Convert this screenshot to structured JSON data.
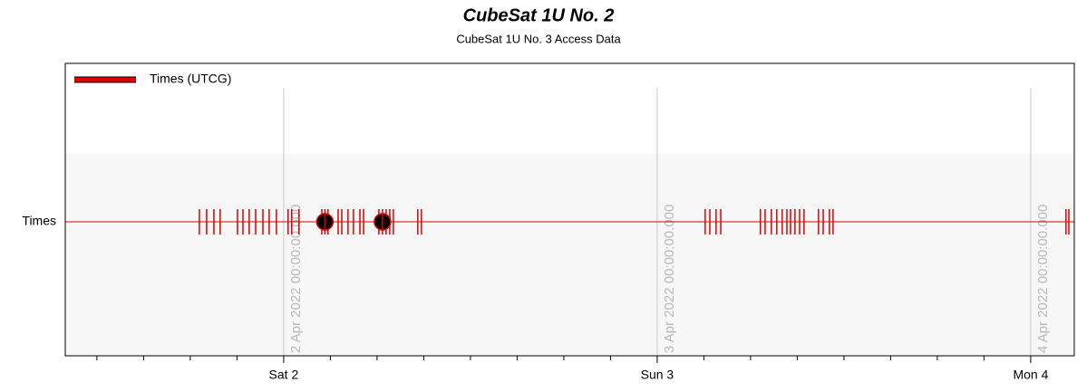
{
  "chart_data": {
    "type": "timeline",
    "title": "CubeSat 1U No. 2",
    "subtitle": "CubeSat 1U No. 3 Access Data",
    "legend": {
      "label": "Times (UTCG)",
      "corner": "top-left"
    },
    "color": "#e00000",
    "row_label": "Times",
    "xlim": [
      "2022-04-01T09:58",
      "2022-04-04T02:48"
    ],
    "xticks": [
      {
        "value": "2022-04-02T00:00",
        "label": "Sat 2"
      },
      {
        "value": "2022-04-03T00:00",
        "label": "Sun 3"
      },
      {
        "value": "2022-04-04T00:00",
        "label": "Mon 4"
      }
    ],
    "minor_xticks": [
      "2022-04-01T12:00",
      "2022-04-01T15:00",
      "2022-04-01T18:00",
      "2022-04-01T21:00",
      "2022-04-02T03:00",
      "2022-04-02T06:00",
      "2022-04-02T09:00",
      "2022-04-02T12:00",
      "2022-04-02T15:00",
      "2022-04-02T18:00",
      "2022-04-02T21:00",
      "2022-04-03T03:00",
      "2022-04-03T06:00",
      "2022-04-03T09:00",
      "2022-04-03T12:00",
      "2022-04-03T15:00",
      "2022-04-03T18:00",
      "2022-04-03T21:00"
    ],
    "grid": true,
    "annotations": [
      {
        "x": "2022-04-02T00:00",
        "label": "2 Apr 2022 00:00:00.000"
      },
      {
        "x": "2022-04-03T00:00",
        "label": "3 Apr 2022 00:00:00.000"
      },
      {
        "x": "2022-04-04T00:00",
        "label": "4 Apr 2022 00:00:00.000"
      }
    ],
    "intervals": [
      [
        "2022-04-01T18:35",
        "2022-04-01T19:03"
      ],
      [
        "2022-04-01T19:31",
        "2022-04-01T19:55"
      ],
      [
        "2022-04-01T21:02",
        "2022-04-01T21:23"
      ],
      [
        "2022-04-01T21:47",
        "2022-04-01T22:12"
      ],
      [
        "2022-04-01T22:40",
        "2022-04-01T23:04"
      ],
      [
        "2022-04-01T23:32",
        "2022-04-02T00:17"
      ],
      [
        "2022-04-02T00:31",
        "2022-04-02T00:59"
      ],
      [
        "2022-04-02T02:27",
        "2022-04-02T02:51"
      ],
      [
        "2022-04-02T03:30",
        "2022-04-02T03:44"
      ],
      [
        "2022-04-02T04:08",
        "2022-04-02T04:29"
      ],
      [
        "2022-04-02T04:54",
        "2022-04-02T05:08"
      ],
      [
        "2022-04-02T06:07",
        "2022-04-02T06:35"
      ],
      [
        "2022-04-02T06:49",
        "2022-04-02T07:03"
      ],
      [
        "2022-04-02T08:37",
        "2022-04-02T08:51"
      ],
      [
        "2022-04-03T03:05",
        "2022-04-03T03:23"
      ],
      [
        "2022-04-03T03:47",
        "2022-04-03T04:05"
      ],
      [
        "2022-04-03T06:38",
        "2022-04-03T06:56"
      ],
      [
        "2022-04-03T07:20",
        "2022-04-03T07:41"
      ],
      [
        "2022-04-03T08:02",
        "2022-04-03T08:20"
      ],
      [
        "2022-04-03T08:34",
        "2022-04-03T08:51"
      ],
      [
        "2022-04-03T09:09",
        "2022-04-03T09:26"
      ],
      [
        "2022-04-03T10:22",
        "2022-04-03T10:40"
      ],
      [
        "2022-04-03T11:04",
        "2022-04-03T11:18"
      ],
      [
        "2022-04-04T02:16",
        "2022-04-04T02:27"
      ]
    ],
    "events": [
      "2022-04-02T02:39",
      "2022-04-02T06:21"
    ]
  }
}
